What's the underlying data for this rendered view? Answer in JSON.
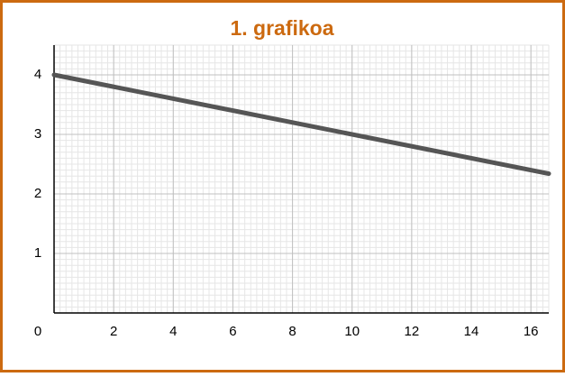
{
  "chart_data": {
    "type": "line",
    "title": "1. grafikoa",
    "x": [
      0,
      16.6
    ],
    "series": [
      {
        "color": "#555555",
        "values": [
          4,
          2.34
        ]
      }
    ],
    "xlim": [
      0,
      16.6
    ],
    "ylim": [
      0,
      4.5
    ],
    "xticks": [
      0,
      2,
      4,
      6,
      8,
      10,
      12,
      14,
      16
    ],
    "yticks": [
      1,
      2,
      3,
      4
    ],
    "grid": true,
    "title_color": "#cc6a10",
    "border_color": "#cc6a10"
  }
}
